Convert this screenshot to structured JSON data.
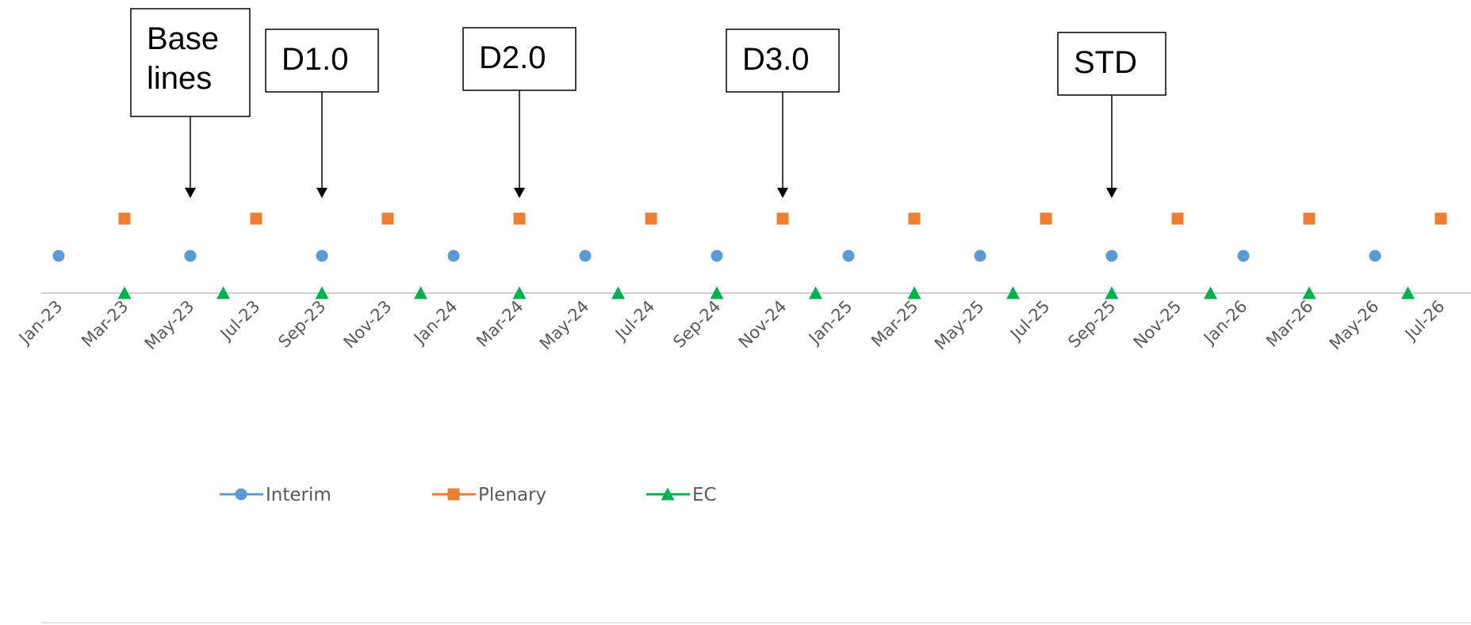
{
  "chart_data": {
    "type": "scatter",
    "x_axis": {
      "type": "date",
      "range": [
        "2023-01",
        "2026-07"
      ],
      "tick_labels": [
        "Jan-23",
        "Mar-23",
        "May-23",
        "Jul-23",
        "Sep-23",
        "Nov-23",
        "Jan-24",
        "Mar-24",
        "May-24",
        "Jul-24",
        "Sep-24",
        "Nov-24",
        "Jan-25",
        "Mar-25",
        "May-25",
        "Jul-25",
        "Sep-25",
        "Nov-25",
        "Jan-26",
        "Mar-26",
        "May-26",
        "Jul-26"
      ]
    },
    "y_axis": {
      "visible": false,
      "range": [
        0,
        3
      ]
    },
    "grid": false,
    "legend": {
      "position": "bottom-left",
      "entries": [
        "Interim",
        "Plenary",
        "EC"
      ]
    },
    "series": [
      {
        "name": "Interim",
        "marker": "circle",
        "color": "#5B9BD5",
        "y": 1,
        "x": [
          "2023-01",
          "2023-05",
          "2023-09",
          "2024-01",
          "2024-05",
          "2024-09",
          "2025-01",
          "2025-05",
          "2025-09",
          "2026-01",
          "2026-05"
        ]
      },
      {
        "name": "Plenary",
        "marker": "square",
        "color": "#ED7D31",
        "y": 2,
        "x": [
          "2023-03",
          "2023-07",
          "2023-11",
          "2024-03",
          "2024-07",
          "2024-11",
          "2025-03",
          "2025-07",
          "2025-11",
          "2026-03",
          "2026-07"
        ]
      },
      {
        "name": "EC",
        "marker": "triangle",
        "color": "#00B050",
        "y": 0,
        "x": [
          "2023-03",
          "2023-06",
          "2023-09",
          "2023-12",
          "2024-03",
          "2024-06",
          "2024-09",
          "2024-12",
          "2025-03",
          "2025-06",
          "2025-09",
          "2025-12",
          "2026-03",
          "2026-06"
        ]
      }
    ],
    "annotations": [
      {
        "text": "Base lines",
        "x": "2023-05"
      },
      {
        "text": "D1.0",
        "x": "2023-09"
      },
      {
        "text": "D2.0",
        "x": "2024-03"
      },
      {
        "text": "D3.0",
        "x": "2024-11"
      },
      {
        "text": "STD",
        "x": "2025-09"
      }
    ]
  }
}
